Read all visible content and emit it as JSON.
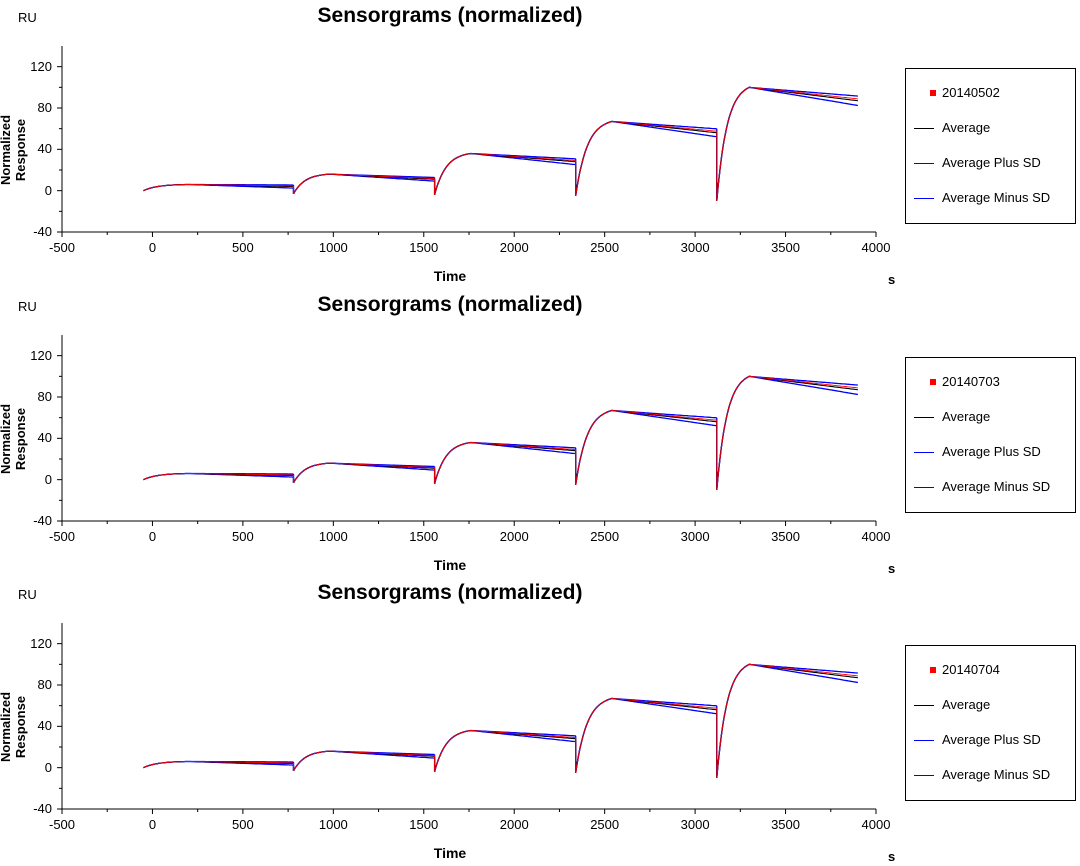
{
  "colors": {
    "run": "#ff0000",
    "average": "#000000",
    "plus_sd": "#0000ff",
    "minus_sd": "#0000ff"
  },
  "chart_data": [
    {
      "type": "line",
      "title": "Sensorgrams (normalized)",
      "xlabel": "Time",
      "ylabel": "Normalized Response",
      "y_unit": "RU",
      "x_unit": "s",
      "xlim": [
        -500,
        4000
      ],
      "ylim": [
        -40,
        140
      ],
      "x_ticks": [
        "-500",
        "0",
        "500",
        "1000",
        "1500",
        "2000",
        "2500",
        "3000",
        "3500",
        "4000"
      ],
      "y_ticks": [
        "-40",
        "0",
        "40",
        "80",
        "120"
      ],
      "legend_position": "right",
      "series": [
        {
          "name": "20140502",
          "color": "#ff0000",
          "style": "marker"
        },
        {
          "name": "Average",
          "color": "#000000",
          "style": "line"
        },
        {
          "name": "Average Plus SD",
          "color": "#0000ff",
          "style": "line"
        },
        {
          "name": "Average Minus SD",
          "color": "#0000ff",
          "style": "line"
        }
      ],
      "cycles": [
        {
          "start": -50,
          "assoc_end": 200,
          "dissoc_end": 780,
          "base": 0,
          "peak": 6,
          "end": 4
        },
        {
          "start": 780,
          "assoc_end": 980,
          "dissoc_end": 1560,
          "base": -3,
          "peak": 16,
          "end": 11
        },
        {
          "start": 1560,
          "assoc_end": 1760,
          "dissoc_end": 2340,
          "base": -4,
          "peak": 36,
          "end": 28
        },
        {
          "start": 2340,
          "assoc_end": 2540,
          "dissoc_end": 3120,
          "base": -5,
          "peak": 67,
          "end": 56
        },
        {
          "start": 3120,
          "assoc_end": 3300,
          "dissoc_end": 3900,
          "base": -10,
          "peak": 100,
          "end": 87
        }
      ]
    },
    {
      "type": "line",
      "title": "Sensorgrams (normalized)",
      "xlabel": "Time",
      "ylabel": "Normalized Response",
      "y_unit": "RU",
      "x_unit": "s",
      "xlim": [
        -500,
        4000
      ],
      "ylim": [
        -40,
        140
      ],
      "x_ticks": [
        "-500",
        "0",
        "500",
        "1000",
        "1500",
        "2000",
        "2500",
        "3000",
        "3500",
        "4000"
      ],
      "y_ticks": [
        "-40",
        "0",
        "40",
        "80",
        "120"
      ],
      "legend_position": "right",
      "series": [
        {
          "name": "20140703",
          "color": "#ff0000",
          "style": "marker"
        },
        {
          "name": "Average",
          "color": "#000000",
          "style": "line"
        },
        {
          "name": "Average Plus SD",
          "color": "#0000ff",
          "style": "line"
        },
        {
          "name": "Average Minus SD",
          "color": "#0000ff",
          "style": "line"
        }
      ],
      "cycles": [
        {
          "start": -50,
          "assoc_end": 200,
          "dissoc_end": 780,
          "base": 0,
          "peak": 6,
          "end": 4
        },
        {
          "start": 780,
          "assoc_end": 980,
          "dissoc_end": 1560,
          "base": -3,
          "peak": 16,
          "end": 11
        },
        {
          "start": 1560,
          "assoc_end": 1760,
          "dissoc_end": 2340,
          "base": -4,
          "peak": 36,
          "end": 28
        },
        {
          "start": 2340,
          "assoc_end": 2540,
          "dissoc_end": 3120,
          "base": -5,
          "peak": 67,
          "end": 56
        },
        {
          "start": 3120,
          "assoc_end": 3300,
          "dissoc_end": 3900,
          "base": -10,
          "peak": 100,
          "end": 87
        }
      ]
    },
    {
      "type": "line",
      "title": "Sensorgrams (normalized)",
      "xlabel": "Time",
      "ylabel": "Normalized Response",
      "y_unit": "RU",
      "x_unit": "s",
      "xlim": [
        -500,
        4000
      ],
      "ylim": [
        -40,
        140
      ],
      "x_ticks": [
        "-500",
        "0",
        "500",
        "1000",
        "1500",
        "2000",
        "2500",
        "3000",
        "3500",
        "4000"
      ],
      "y_ticks": [
        "-40",
        "0",
        "40",
        "80",
        "120"
      ],
      "legend_position": "right",
      "series": [
        {
          "name": "20140704",
          "color": "#ff0000",
          "style": "marker"
        },
        {
          "name": "Average",
          "color": "#000000",
          "style": "line"
        },
        {
          "name": "Average Plus SD",
          "color": "#0000ff",
          "style": "line"
        },
        {
          "name": "Average Minus SD",
          "color": "#0000ff",
          "style": "line"
        }
      ],
      "cycles": [
        {
          "start": -50,
          "assoc_end": 200,
          "dissoc_end": 780,
          "base": 0,
          "peak": 6,
          "end": 4
        },
        {
          "start": 780,
          "assoc_end": 980,
          "dissoc_end": 1560,
          "base": -3,
          "peak": 16,
          "end": 11
        },
        {
          "start": 1560,
          "assoc_end": 1760,
          "dissoc_end": 2340,
          "base": -4,
          "peak": 36,
          "end": 28
        },
        {
          "start": 2340,
          "assoc_end": 2540,
          "dissoc_end": 3120,
          "base": -5,
          "peak": 67,
          "end": 56
        },
        {
          "start": 3120,
          "assoc_end": 3300,
          "dissoc_end": 3900,
          "base": -10,
          "peak": 100,
          "end": 87
        }
      ]
    }
  ]
}
